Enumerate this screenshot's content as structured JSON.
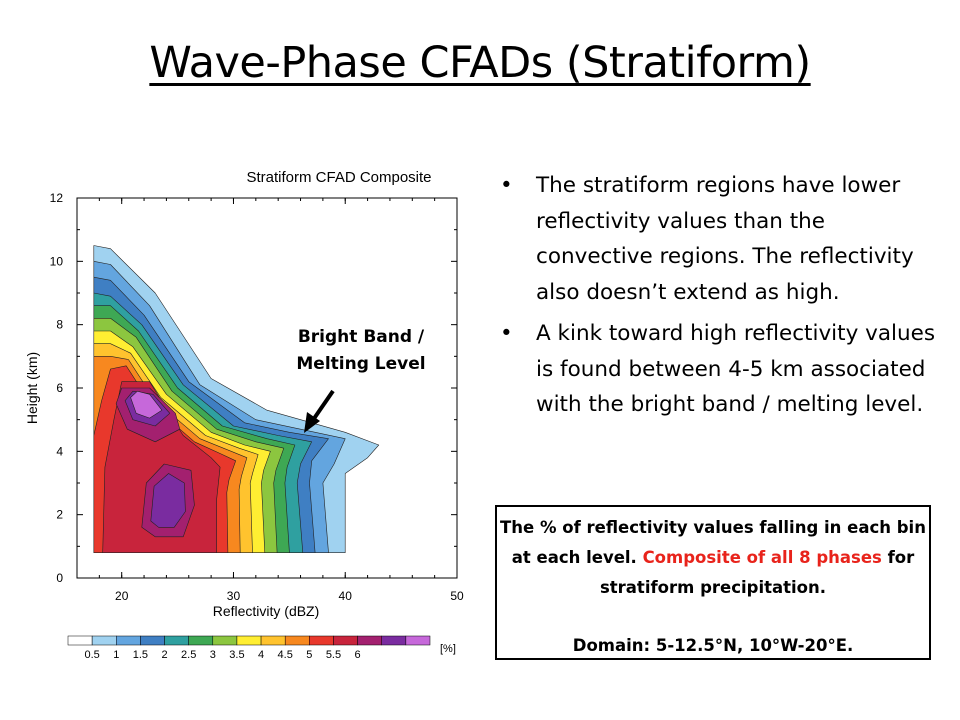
{
  "slide": {
    "title": "Wave-Phase CFADs (Stratiform)",
    "annotation_line1": "Bright Band /",
    "annotation_line2": "Melting Level"
  },
  "bullets": [
    {
      "marker": "•",
      "text": "The stratiform regions have lower reflectivity values than the convective regions. The reflectivity also doesn’t extend as high."
    },
    {
      "marker": "•",
      "text": "A kink toward high reflectivity values is found between 4-5 km associated with the bright band / melting level."
    }
  ],
  "note_box": {
    "part1": "The % of reflectivity values falling in each bin at each level. ",
    "part2_red": "Composite of all 8 phases",
    "part3": " for stratiform precipitation.",
    "domain": "Domain: 5-12.5°N, 10°W-20°E.",
    "accent_color": "#e8231b"
  },
  "chart_data": {
    "type": "heatmap",
    "title": "Stratiform CFAD Composite",
    "xlabel": "Reflectivity (dBZ)",
    "ylabel": "Height (km)",
    "xlim": [
      16,
      50
    ],
    "ylim": [
      0,
      12
    ],
    "xticks": [
      "20",
      "30",
      "40",
      "50"
    ],
    "yticks": [
      "0",
      "2",
      "4",
      "6",
      "8",
      "10",
      "12"
    ],
    "colorbar": {
      "unit": "[%]",
      "labels": [
        "0.5",
        "1",
        "1.5",
        "2",
        "2.5",
        "3",
        "3.5",
        "4",
        "4.5",
        "5",
        "5.5",
        "6"
      ],
      "colors": [
        "#ffffff",
        "#a0d2f0",
        "#63a5df",
        "#3f7fc3",
        "#2fa0a0",
        "#3ea854",
        "#8cc63f",
        "#ffee32",
        "#ffc32e",
        "#f7881f",
        "#e8382c",
        "#c8243c",
        "#a3206f",
        "#7a2ca0",
        "#c668da"
      ]
    },
    "contour_levels": [
      {
        "level": 0.5,
        "color": "#a0d2f0",
        "outline": [
          [
            17.5,
            0.8
          ],
          [
            17.5,
            10.5
          ],
          [
            19,
            10.4
          ],
          [
            23,
            9.0
          ],
          [
            28,
            6.3
          ],
          [
            33,
            5.3
          ],
          [
            37,
            4.9
          ],
          [
            40,
            4.6
          ],
          [
            43,
            4.2
          ],
          [
            42,
            3.8
          ],
          [
            40,
            3.3
          ],
          [
            40,
            0.8
          ]
        ]
      },
      {
        "level": 1,
        "color": "#63a5df",
        "outline": [
          [
            17.5,
            0.8
          ],
          [
            17.5,
            10.0
          ],
          [
            19,
            9.9
          ],
          [
            22.5,
            8.6
          ],
          [
            27,
            6.1
          ],
          [
            32,
            5.0
          ],
          [
            36,
            4.7
          ],
          [
            40,
            4.4
          ],
          [
            39,
            3.6
          ],
          [
            38,
            3.0
          ],
          [
            38.5,
            0.8
          ]
        ]
      },
      {
        "level": 1.5,
        "color": "#3f7fc3",
        "outline": [
          [
            17.5,
            0.8
          ],
          [
            17.5,
            9.5
          ],
          [
            19,
            9.4
          ],
          [
            22,
            8.3
          ],
          [
            26,
            6.2
          ],
          [
            31,
            4.9
          ],
          [
            35,
            4.6
          ],
          [
            38.5,
            4.4
          ],
          [
            37,
            3.7
          ],
          [
            36.8,
            3.0
          ],
          [
            37.3,
            0.8
          ]
        ]
      },
      {
        "level": 2,
        "color": "#2fa0a0",
        "outline": [
          [
            17.5,
            0.8
          ],
          [
            17.5,
            9.0
          ],
          [
            19,
            8.9
          ],
          [
            21.8,
            8.0
          ],
          [
            25.5,
            6.1
          ],
          [
            30,
            4.8
          ],
          [
            34,
            4.5
          ],
          [
            37,
            4.3
          ],
          [
            36,
            3.6
          ],
          [
            35.7,
            3.0
          ],
          [
            36.2,
            0.8
          ]
        ]
      },
      {
        "level": 2.5,
        "color": "#3ea854",
        "outline": [
          [
            17.5,
            0.8
          ],
          [
            17.5,
            8.6
          ],
          [
            19,
            8.6
          ],
          [
            21.5,
            7.8
          ],
          [
            25,
            6.0
          ],
          [
            29,
            4.8
          ],
          [
            33,
            4.4
          ],
          [
            35.5,
            4.2
          ],
          [
            34.8,
            3.5
          ],
          [
            34.6,
            3.0
          ],
          [
            35,
            0.8
          ]
        ]
      },
      {
        "level": 3,
        "color": "#8cc63f",
        "outline": [
          [
            17.5,
            0.8
          ],
          [
            17.5,
            8.2
          ],
          [
            19,
            8.2
          ],
          [
            21.3,
            7.6
          ],
          [
            24.5,
            5.9
          ],
          [
            28.5,
            4.7
          ],
          [
            32,
            4.3
          ],
          [
            34.5,
            4.1
          ],
          [
            33.8,
            3.4
          ],
          [
            33.6,
            3.0
          ],
          [
            33.9,
            0.8
          ]
        ]
      },
      {
        "level": 3.5,
        "color": "#ffee32",
        "outline": [
          [
            17.5,
            0.8
          ],
          [
            17.5,
            7.8
          ],
          [
            19,
            7.8
          ],
          [
            21,
            7.3
          ],
          [
            24,
            5.8
          ],
          [
            28,
            4.6
          ],
          [
            31,
            4.2
          ],
          [
            33.3,
            4.0
          ],
          [
            32.7,
            3.4
          ],
          [
            32.5,
            3.0
          ],
          [
            32.8,
            0.8
          ]
        ]
      },
      {
        "level": 4,
        "color": "#ffc32e",
        "outline": [
          [
            17.5,
            0.8
          ],
          [
            17.5,
            7.4
          ],
          [
            19,
            7.4
          ],
          [
            20.8,
            7.1
          ],
          [
            23.5,
            5.7
          ],
          [
            27.5,
            4.5
          ],
          [
            30.5,
            4.1
          ],
          [
            32.2,
            3.9
          ],
          [
            31.7,
            3.3
          ],
          [
            31.5,
            3.0
          ],
          [
            31.7,
            0.8
          ]
        ]
      },
      {
        "level": 4.5,
        "color": "#f7881f",
        "outline": [
          [
            17.5,
            0.8
          ],
          [
            17.5,
            7.0
          ],
          [
            19,
            7.0
          ],
          [
            20.6,
            6.9
          ],
          [
            23,
            5.6
          ],
          [
            27,
            4.4
          ],
          [
            29.8,
            4.0
          ],
          [
            31.2,
            3.8
          ],
          [
            30.7,
            3.2
          ],
          [
            30.5,
            2.8
          ],
          [
            30.6,
            0.8
          ]
        ]
      },
      {
        "level": 5,
        "color": "#e8382c",
        "outline": [
          [
            17.5,
            0.8
          ],
          [
            17.5,
            4.5
          ],
          [
            18.2,
            5.6
          ],
          [
            19,
            6.6
          ],
          [
            20.4,
            6.7
          ],
          [
            22.6,
            5.5
          ],
          [
            26.5,
            4.3
          ],
          [
            29,
            3.9
          ],
          [
            30.2,
            3.7
          ],
          [
            29.6,
            3.1
          ],
          [
            29.4,
            2.7
          ],
          [
            29.5,
            0.8
          ]
        ]
      },
      {
        "level": 5.5,
        "color": "#c8243c",
        "outline": [
          [
            18.3,
            0.8
          ],
          [
            18.5,
            3.5
          ],
          [
            19.3,
            5.0
          ],
          [
            20,
            6.2
          ],
          [
            22.5,
            6.2
          ],
          [
            25.5,
            4.5
          ],
          [
            28,
            3.8
          ],
          [
            28.8,
            3.5
          ],
          [
            28.5,
            2.5
          ],
          [
            28.5,
            0.8
          ]
        ]
      },
      {
        "level": 6,
        "color": "#a3206f",
        "outline": [
          [
            19.5,
            5.5
          ],
          [
            20,
            6.0
          ],
          [
            22.5,
            6.0
          ],
          [
            24.8,
            5.2
          ],
          [
            25.2,
            4.7
          ],
          [
            23,
            4.3
          ],
          [
            20.5,
            4.7
          ]
        ]
      },
      {
        "level": 6,
        "color": "#a3206f",
        "outline": [
          [
            21.8,
            1.6
          ],
          [
            22.2,
            3.0
          ],
          [
            23.8,
            3.6
          ],
          [
            26.2,
            3.4
          ],
          [
            26.5,
            2.3
          ],
          [
            25.5,
            1.3
          ],
          [
            23,
            1.3
          ]
        ]
      },
      {
        "level": 6.5,
        "color": "#7a2ca0",
        "outline": [
          [
            20.3,
            5.6
          ],
          [
            21,
            5.9
          ],
          [
            22.8,
            5.8
          ],
          [
            24.3,
            5.2
          ],
          [
            23,
            4.8
          ],
          [
            21,
            5.0
          ]
        ]
      },
      {
        "level": 6.5,
        "color": "#7a2ca0",
        "outline": [
          [
            22.6,
            1.8
          ],
          [
            22.9,
            2.9
          ],
          [
            24.2,
            3.3
          ],
          [
            25.6,
            3.0
          ],
          [
            25.7,
            2.1
          ],
          [
            24.7,
            1.6
          ],
          [
            23.3,
            1.6
          ]
        ]
      },
      {
        "level": 7,
        "color": "#c668da",
        "outline": [
          [
            20.8,
            5.7
          ],
          [
            21.4,
            5.9
          ],
          [
            22.5,
            5.8
          ],
          [
            23.6,
            5.3
          ],
          [
            22.5,
            5.05
          ],
          [
            21.3,
            5.2
          ]
        ]
      }
    ]
  }
}
